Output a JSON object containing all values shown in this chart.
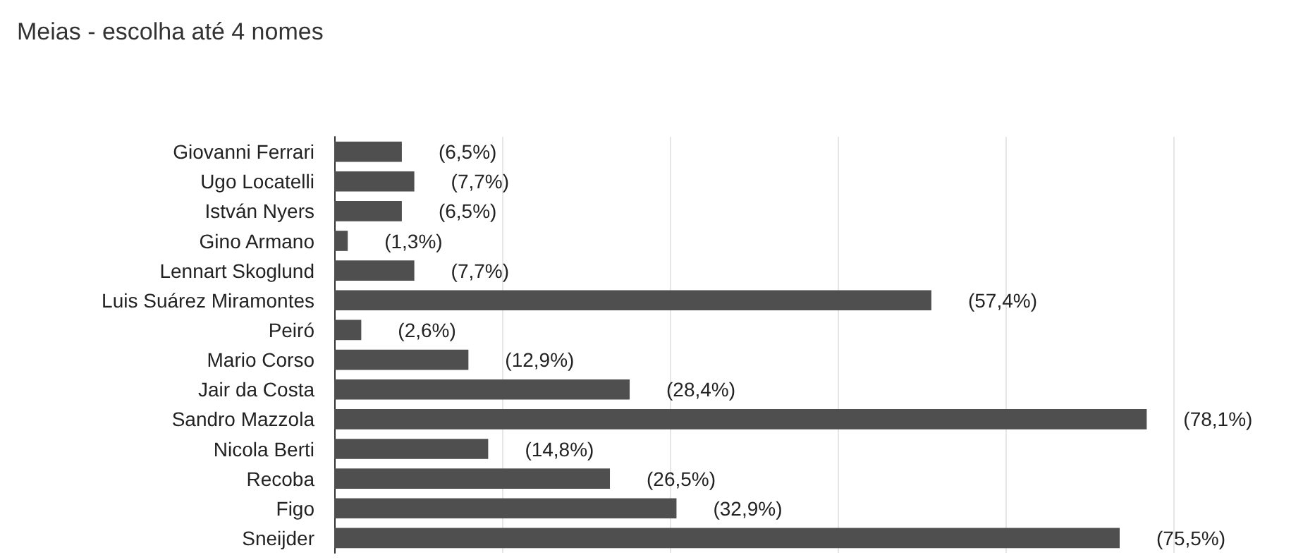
{
  "chart_data": {
    "type": "bar",
    "orientation": "horizontal",
    "title": "Meias - escolha até 4 nomes",
    "categories": [
      "Giovanni Ferrari",
      "Ugo Locatelli",
      "István Nyers",
      "Gino Armano",
      "Lennart Skoglund",
      "Luis Suárez Miramontes",
      "Peiró",
      "Mario Corso",
      "Jair da Costa",
      "Sandro Mazzola",
      "Nicola Berti",
      "Recoba",
      "Figo",
      "Sneijder"
    ],
    "values": [
      6.5,
      7.7,
      6.5,
      1.3,
      7.7,
      57.4,
      2.6,
      12.9,
      28.4,
      78.1,
      14.8,
      26.5,
      32.9,
      75.5
    ],
    "value_labels": [
      "(6,5%)",
      "(7,7%)",
      "(6,5%)",
      "(1,3%)",
      "(7,7%)",
      "(57,4%)",
      "(2,6%)",
      "(12,9%)",
      "(28,4%)",
      "(78,1%)",
      "(14,8%)",
      "(26,5%)",
      "(32,9%)",
      "(75,5%)"
    ],
    "color": "#4f4f4f",
    "xlim": [
      0,
      80.65
    ],
    "xticks": [
      {
        "value": 0,
        "label": null
      },
      {
        "value": 16.13,
        "label": null
      },
      {
        "value": 32.26,
        "label": null
      },
      {
        "value": 48.39,
        "label": null
      },
      {
        "value": 64.52,
        "label": null
      },
      {
        "value": 80.65,
        "label": null
      }
    ],
    "grid": "x",
    "tick_labels": "y"
  }
}
